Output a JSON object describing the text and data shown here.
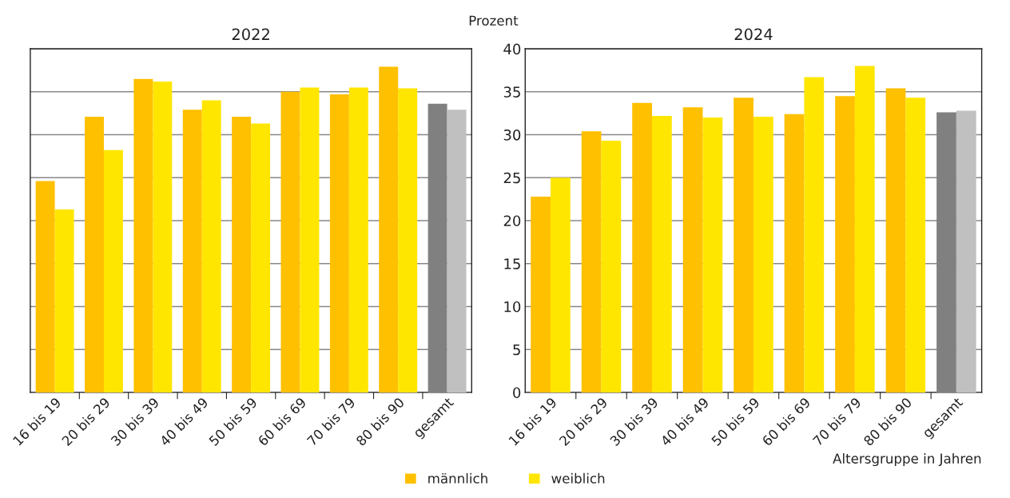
{
  "chart_data": [
    {
      "type": "bar",
      "title": "2022",
      "categories": [
        "16 bis 19",
        "20 bis 29",
        "30 bis 39",
        "40 bis 49",
        "50 bis 59",
        "60 bis 69",
        "70 bis 79",
        "80 bis 90",
        "gesamt"
      ],
      "series": [
        {
          "colors": [
            "#ffc000",
            "#ffc000",
            "#ffc000",
            "#ffc000",
            "#ffc000",
            "#ffc000",
            "#ffc000",
            "#ffc000",
            "#808080"
          ],
          "values": [
            24.6,
            32.1,
            36.5,
            32.9,
            32.1,
            35.0,
            34.7,
            37.9,
            33.6
          ]
        },
        {
          "colors": [
            "#ffe600",
            "#ffe600",
            "#ffe600",
            "#ffe600",
            "#ffe600",
            "#ffe600",
            "#ffe600",
            "#ffe600",
            "#c0c0c0"
          ],
          "values": [
            21.3,
            28.2,
            36.2,
            34.0,
            31.3,
            35.5,
            35.5,
            35.4,
            32.9
          ]
        }
      ],
      "ylim": [
        0,
        40
      ],
      "yticks": [
        0,
        5,
        10,
        15,
        20,
        25,
        30,
        35,
        40
      ],
      "grid": "y",
      "tick_labels": "x"
    },
    {
      "type": "bar",
      "title": "2024",
      "ylabel": "Prozent",
      "xlabel": "Altersgruppe in Jahren",
      "categories": [
        "16 bis 19",
        "20 bis 29",
        "30 bis 39",
        "40 bis 49",
        "50 bis 59",
        "60 bis 69",
        "70 bis 79",
        "80 bis 90",
        "gesamt"
      ],
      "series": [
        {
          "name": "männlich",
          "color": "#ffc000",
          "colors": [
            "#ffc000",
            "#ffc000",
            "#ffc000",
            "#ffc000",
            "#ffc000",
            "#ffc000",
            "#ffc000",
            "#ffc000",
            "#808080"
          ],
          "values": [
            22.8,
            30.4,
            33.7,
            33.2,
            34.3,
            32.4,
            34.5,
            35.4,
            32.6
          ]
        },
        {
          "name": "weiblich",
          "color": "#ffe600",
          "colors": [
            "#ffe600",
            "#ffe600",
            "#ffe600",
            "#ffe600",
            "#ffe600",
            "#ffe600",
            "#ffe600",
            "#ffe600",
            "#c0c0c0"
          ],
          "values": [
            25.0,
            29.3,
            32.2,
            32.0,
            32.1,
            36.7,
            38.0,
            34.3,
            32.8
          ]
        }
      ],
      "ylim": [
        0,
        40
      ],
      "yticks": [
        0,
        5,
        10,
        15,
        20,
        25,
        30,
        35,
        40
      ],
      "grid": "y",
      "legend": "bottom"
    }
  ]
}
